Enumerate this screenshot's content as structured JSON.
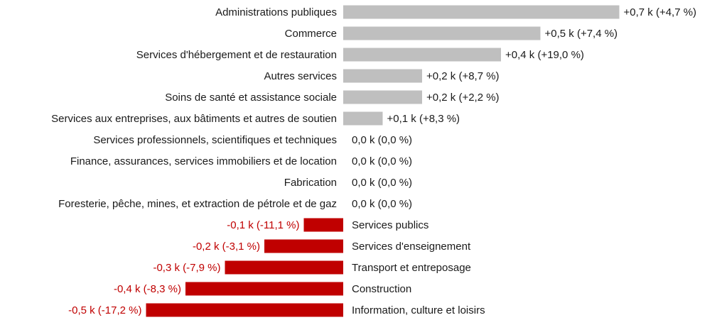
{
  "chart_data": {
    "type": "bar",
    "orientation": "horizontal",
    "unit": "k",
    "colors": {
      "positive": "#bfbfbf",
      "negative": "#c00000",
      "positive_label": "#1a1a1a",
      "negative_label": "#c00000"
    },
    "categories": [
      "Administrations publiques",
      "Commerce",
      "Services d'hébergement et de restauration",
      "Autres services",
      "Soins de santé et assistance sociale",
      "Services aux entreprises, aux bâtiments et autres de soutien",
      "Services professionnels, scientifiques et techniques",
      "Finance, assurances, services immobiliers et de location",
      "Fabrication",
      "Foresterie, pêche, mines, et extraction de pétrole et de gaz",
      "Services publics",
      "Services d'enseignement",
      "Transport et entreposage",
      "Construction",
      "Information, culture et loisirs"
    ],
    "values": [
      0.7,
      0.5,
      0.4,
      0.2,
      0.2,
      0.1,
      0.0,
      0.0,
      0.0,
      0.0,
      -0.1,
      -0.2,
      -0.3,
      -0.4,
      -0.5
    ],
    "value_labels": [
      "+0,7 k (+4,7 %)",
      "+0,5 k (+7,4 %)",
      "+0,4 k (+19,0 %)",
      "+0,2 k (+8,7 %)",
      "+0,2 k (+2,2 %)",
      "+0,1 k (+8,3 %)",
      "0,0 k (0,0 %)",
      "0,0 k (0,0 %)",
      "0,0 k (0,0 %)",
      "0,0 k (0,0 %)",
      "-0,1 k (-11,1 %)",
      "-0,2 k (-3,1 %)",
      "-0,3 k (-7,9 %)",
      "-0,4 k (-8,3 %)",
      "-0,5 k (-17,2 %)"
    ],
    "percent_change": [
      4.7,
      7.4,
      19.0,
      8.7,
      2.2,
      8.3,
      0.0,
      0.0,
      0.0,
      0.0,
      -11.1,
      -3.1,
      -7.9,
      -8.3,
      -17.2
    ],
    "title": "",
    "xlabel": "",
    "ylabel": "",
    "grid": false,
    "legend": "none"
  }
}
